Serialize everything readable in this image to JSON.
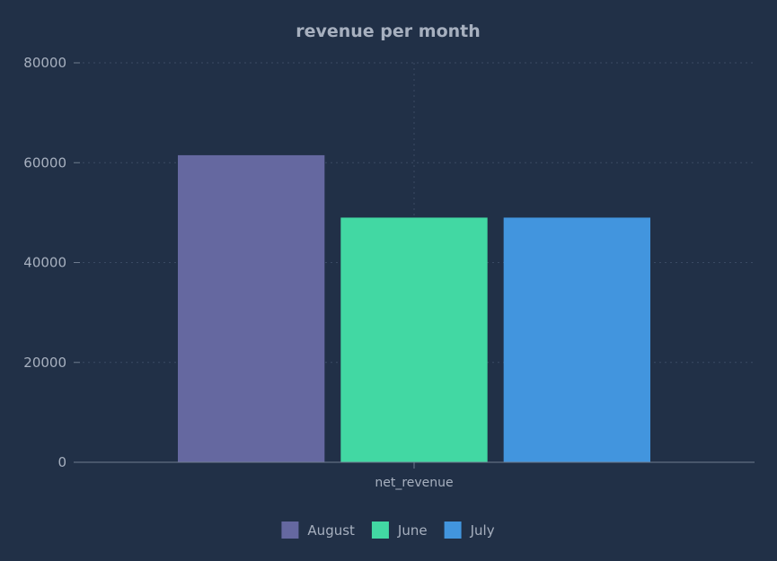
{
  "chart_data": {
    "type": "bar",
    "title": "revenue per month",
    "xlabel": "",
    "ylabel": "",
    "categories": [
      "net_revenue"
    ],
    "series": [
      {
        "name": "August",
        "values": [
          61500
        ],
        "color": "#6568a0"
      },
      {
        "name": "June",
        "values": [
          49000
        ],
        "color": "#42d8a3"
      },
      {
        "name": "July",
        "values": [
          49000
        ],
        "color": "#4295de"
      }
    ],
    "ylim": [
      0,
      80000
    ],
    "yticks": [
      "0",
      "20000",
      "40000",
      "60000",
      "80000"
    ],
    "grid": true,
    "legend_position": "bottom"
  }
}
